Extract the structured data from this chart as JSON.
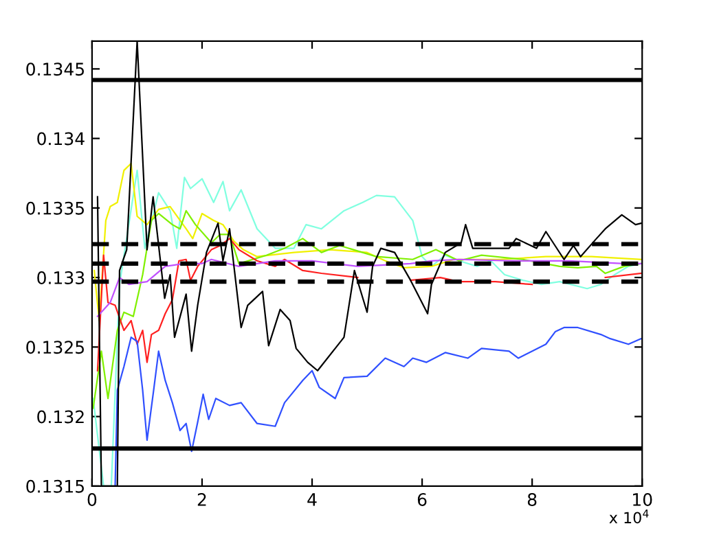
{
  "chart_data": {
    "type": "line",
    "xlim": [
      0,
      10
    ],
    "ylim": [
      0.1315,
      0.1347
    ],
    "xticks": [
      0,
      2,
      4,
      6,
      8,
      10
    ],
    "yticks": [
      {
        "value": 0.1315,
        "label": "0.1315"
      },
      {
        "value": 0.132,
        "label": "0.132"
      },
      {
        "value": 0.1325,
        "label": "0.1325"
      },
      {
        "value": 0.133,
        "label": "0.133"
      },
      {
        "value": 0.1335,
        "label": "0.1335"
      },
      {
        "value": 0.134,
        "label": "0.134"
      },
      {
        "value": 0.1345,
        "label": "0.1345"
      }
    ],
    "annotations": [
      "x 10$^{4}$"
    ],
    "grid": false,
    "legend": false,
    "marker": "none",
    "line_style": "solid",
    "ref_lines": [
      {
        "axis": "y",
        "value": 0.13442,
        "label": null,
        "color": "#000000",
        "line_style": "solid"
      },
      {
        "axis": "y",
        "value": 0.13177,
        "label": null,
        "color": "#000000",
        "line_style": "solid"
      },
      {
        "axis": "y",
        "value": 0.13324,
        "label": null,
        "color": "#000000",
        "line_style": "dashed"
      },
      {
        "axis": "y",
        "value": 0.13297,
        "label": null,
        "color": "#000000",
        "line_style": "dashed"
      },
      {
        "axis": "y",
        "value": 0.1331,
        "label": null,
        "color": "#000000",
        "line_style": "dashed"
      }
    ],
    "series": [
      {
        "color": "#80ffe0",
        "x": [
          0.02,
          0.21,
          0.35,
          0.5,
          0.82,
          0.96,
          1.21,
          1.42,
          1.54,
          1.68,
          1.79,
          2.0,
          2.21,
          2.38,
          2.5,
          2.71,
          3.0,
          3.33,
          3.67,
          3.89,
          4.17,
          4.58,
          4.92,
          5.17,
          5.5,
          5.83,
          6.0,
          6.17,
          6.42,
          6.67,
          7.0,
          7.25,
          7.5,
          7.83,
          8.17,
          8.5,
          9.0,
          9.25,
          9.5,
          9.75,
          9.98
        ],
        "values": [
          0.13213,
          0.1315,
          0.1315,
          0.13295,
          0.13377,
          0.13321,
          0.13361,
          0.13348,
          0.13321,
          0.13372,
          0.13364,
          0.13371,
          0.13354,
          0.13369,
          0.13348,
          0.13363,
          0.13335,
          0.13321,
          0.13321,
          0.13338,
          0.13335,
          0.13348,
          0.13354,
          0.13359,
          0.13358,
          0.13341,
          0.13315,
          0.13308,
          0.13316,
          0.13312,
          0.13308,
          0.13312,
          0.13302,
          0.13298,
          0.13295,
          0.13297,
          0.13292,
          0.13295,
          0.13302,
          0.13308,
          0.1331
        ]
      },
      {
        "color": "#f0f000",
        "x": [
          0.04,
          0.13,
          0.25,
          0.33,
          0.46,
          0.58,
          0.71,
          0.82,
          1.0,
          1.21,
          1.42,
          1.71,
          1.83,
          2.0,
          2.21,
          2.38,
          2.58,
          2.75,
          3.0,
          3.67,
          4.33,
          5.0,
          5.33,
          5.67,
          6.17,
          6.58,
          7.42,
          8.25,
          9.08,
          9.98
        ],
        "values": [
          0.13305,
          0.13269,
          0.13341,
          0.13351,
          0.13354,
          0.13377,
          0.13382,
          0.13344,
          0.13338,
          0.13349,
          0.13351,
          0.13335,
          0.13328,
          0.13346,
          0.13341,
          0.13338,
          0.13326,
          0.1332,
          0.13315,
          0.13318,
          0.1332,
          0.13318,
          0.13312,
          0.13307,
          0.13308,
          0.13313,
          0.13313,
          0.13315,
          0.13315,
          0.13313
        ]
      },
      {
        "color": "#80f000",
        "x": [
          0.02,
          0.17,
          0.29,
          0.46,
          0.58,
          0.75,
          0.92,
          1.08,
          1.21,
          1.46,
          1.6,
          1.71,
          1.88,
          2.17,
          2.33,
          2.5,
          2.67,
          3.17,
          3.5,
          3.83,
          4.17,
          4.5,
          5.17,
          5.83,
          6.25,
          6.67,
          7.08,
          7.83,
          8.5,
          8.83,
          9.17,
          9.33,
          9.67,
          9.98
        ],
        "values": [
          0.13206,
          0.13247,
          0.13213,
          0.13262,
          0.13275,
          0.13272,
          0.13302,
          0.13341,
          0.13346,
          0.13338,
          0.13335,
          0.13348,
          0.13338,
          0.13325,
          0.13331,
          0.13331,
          0.1331,
          0.13316,
          0.13321,
          0.13328,
          0.13318,
          0.13323,
          0.13315,
          0.13313,
          0.1332,
          0.13312,
          0.13316,
          0.13313,
          0.13308,
          0.13307,
          0.13308,
          0.13303,
          0.13308,
          0.1331
        ]
      },
      {
        "color": "#ff2020",
        "x": [
          0.1,
          0.21,
          0.29,
          0.42,
          0.58,
          0.71,
          0.82,
          0.92,
          1.0,
          1.08,
          1.21,
          1.33,
          1.46,
          1.58,
          1.71,
          1.79,
          1.92,
          2.17,
          2.33,
          2.5,
          2.67,
          3.0,
          3.33,
          3.5,
          3.83,
          4.17,
          4.83,
          5.5,
          5.79,
          6.33,
          6.67,
          7.33,
          8.0,
          8.67,
          9.33,
          9.98
        ],
        "values": [
          0.13233,
          0.13316,
          0.13282,
          0.1328,
          0.13262,
          0.13269,
          0.13252,
          0.13262,
          0.13239,
          0.13259,
          0.13262,
          0.13274,
          0.13284,
          0.13312,
          0.13313,
          0.13298,
          0.13308,
          0.1332,
          0.13323,
          0.13328,
          0.1332,
          0.13312,
          0.13308,
          0.13313,
          0.13305,
          0.13303,
          0.133,
          null,
          0.13298,
          0.133,
          0.13297,
          0.13297,
          0.13295,
          null,
          0.133,
          0.13303
        ]
      },
      {
        "color": "#c050ff",
        "x": [
          0.1,
          0.33,
          0.5,
          0.67,
          1.0,
          1.33,
          1.67,
          2.0,
          2.17,
          2.67,
          3.33,
          4.0,
          4.83,
          5.79,
          6.17,
          6.67,
          7.67,
          8.67,
          9.67,
          9.98
        ],
        "values": [
          0.13272,
          0.13282,
          0.133,
          0.13295,
          0.13297,
          0.13308,
          0.1331,
          0.1331,
          0.13313,
          0.13308,
          0.13312,
          0.13312,
          0.13308,
          0.1331,
          0.13312,
          0.13313,
          0.13312,
          0.13312,
          0.1331,
          0.1331
        ]
      },
      {
        "color": "#3050ff",
        "x": [
          0.42,
          0.46,
          0.58,
          0.71,
          0.82,
          0.92,
          1.0,
          1.12,
          1.21,
          1.33,
          1.46,
          1.6,
          1.71,
          1.81,
          1.92,
          2.02,
          2.12,
          2.25,
          2.5,
          2.71,
          3.0,
          3.33,
          3.5,
          3.83,
          4.0,
          4.13,
          4.42,
          4.58,
          5.0,
          5.33,
          5.67,
          5.83,
          6.08,
          6.42,
          6.83,
          7.08,
          7.58,
          7.75,
          8.25,
          8.42,
          8.58,
          8.83,
          9.25,
          9.42,
          9.75,
          9.98
        ],
        "values": [
          0.1315,
          0.13219,
          0.13236,
          0.13257,
          0.13254,
          0.13219,
          0.13183,
          0.13219,
          0.13247,
          0.13226,
          0.1321,
          0.1319,
          0.13195,
          0.13175,
          0.13196,
          0.13216,
          0.13198,
          0.13213,
          0.13208,
          0.1321,
          0.13195,
          0.13193,
          0.1321,
          0.13226,
          0.13233,
          0.13221,
          0.13213,
          0.13228,
          0.13229,
          0.13242,
          0.13236,
          0.13242,
          0.13239,
          0.13246,
          0.13242,
          0.13249,
          0.13247,
          0.13242,
          0.13252,
          0.13261,
          0.13264,
          0.13264,
          0.13259,
          0.13256,
          0.13252,
          0.13256
        ]
      },
      {
        "color": "#000000",
        "x": [
          0.1,
          0.17,
          0.46,
          0.5,
          0.63,
          0.82,
          1.0,
          1.11,
          1.32,
          1.42,
          1.5,
          1.71,
          1.81,
          1.92,
          2.08,
          2.29,
          2.38,
          2.5,
          2.71,
          2.83,
          3.1,
          3.21,
          3.42,
          3.6,
          3.71,
          3.92,
          4.1,
          4.42,
          4.58,
          4.77,
          5.0,
          5.1,
          5.25,
          5.5,
          5.79,
          5.92,
          6.1,
          6.17,
          6.42,
          6.71,
          6.79,
          6.92,
          7.25,
          7.58,
          7.71,
          8.08,
          8.25,
          8.58,
          8.75,
          8.88,
          9.17,
          9.33,
          9.63,
          9.88,
          9.98
        ],
        "values": [
          0.13358,
          0.1315,
          0.1315,
          0.13305,
          0.1332,
          0.1347,
          0.1332,
          0.13358,
          0.13285,
          0.13302,
          0.13257,
          0.13288,
          0.13247,
          0.1328,
          0.13318,
          0.13339,
          0.13312,
          0.13335,
          0.13264,
          0.1328,
          0.1329,
          0.13251,
          0.13277,
          0.13269,
          0.13249,
          0.13239,
          0.13233,
          0.13249,
          0.13257,
          0.13305,
          0.13275,
          0.13308,
          0.13321,
          0.13318,
          0.13298,
          0.13288,
          0.13274,
          0.13295,
          0.13318,
          0.13325,
          0.13338,
          0.13321,
          0.13321,
          0.13321,
          0.13328,
          0.13321,
          0.13333,
          0.13313,
          0.13323,
          0.13315,
          0.13328,
          0.13335,
          0.13345,
          0.13338,
          0.13339
        ]
      }
    ]
  }
}
